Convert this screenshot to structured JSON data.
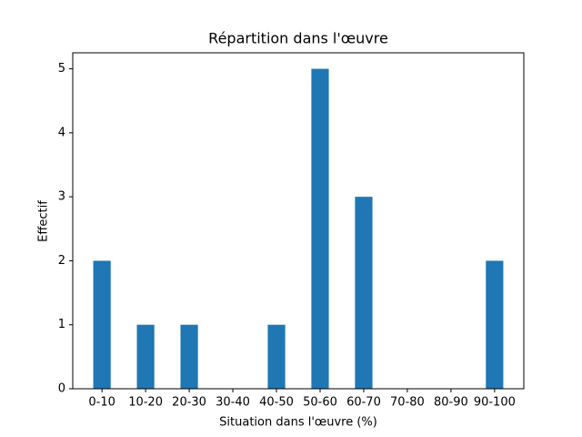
{
  "chart_data": {
    "type": "bar",
    "title": "Répartition dans l'œuvre",
    "xlabel": "Situation dans l'œuvre (%)",
    "ylabel": "Effectif",
    "categories": [
      "0-10",
      "10-20",
      "20-30",
      "30-40",
      "40-50",
      "50-60",
      "60-70",
      "70-80",
      "80-90",
      "90-100"
    ],
    "values": [
      2,
      1,
      1,
      0,
      1,
      5,
      3,
      0,
      0,
      2
    ],
    "color": "#1f77b4",
    "ylim": [
      0,
      5.25
    ],
    "yticks": [
      0,
      1,
      2,
      3,
      4,
      5
    ],
    "grid": false
  }
}
